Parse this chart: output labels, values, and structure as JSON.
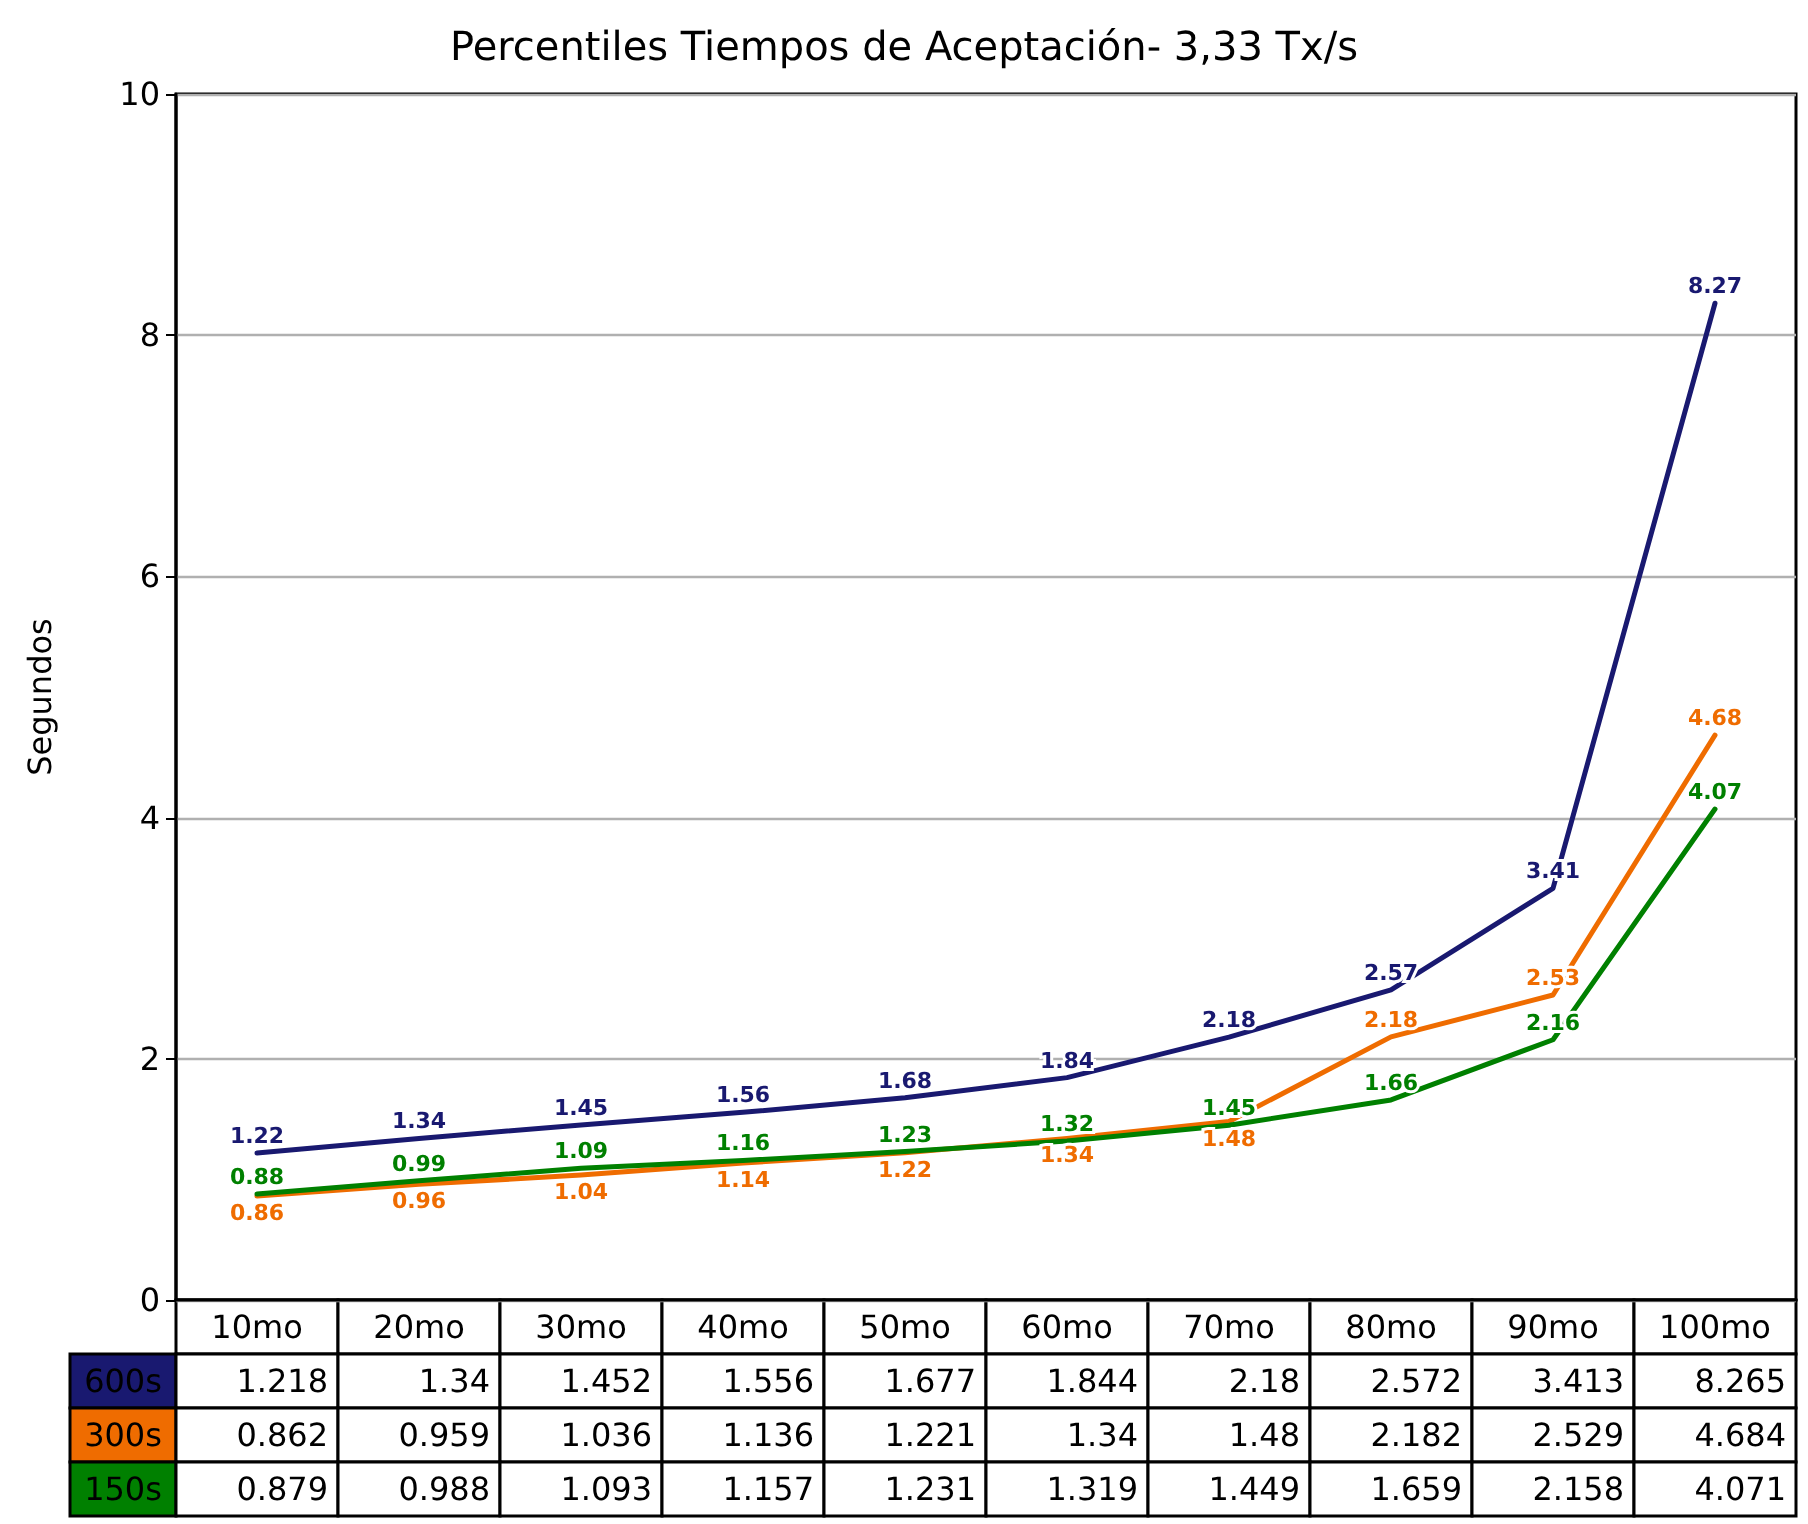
{
  "chart_data": {
    "type": "line",
    "title": "Percentiles Tiempos de Aceptación- 3,33 Tx/s",
    "ylabel": "Segundos",
    "categories": [
      "10mo",
      "20mo",
      "30mo",
      "40mo",
      "50mo",
      "60mo",
      "70mo",
      "80mo",
      "90mo",
      "100mo"
    ],
    "series": [
      {
        "name": "600s",
        "color": "#191970",
        "values": [
          1.218,
          1.34,
          1.452,
          1.556,
          1.677,
          1.844,
          2.18,
          2.572,
          3.413,
          8.265
        ]
      },
      {
        "name": "300s",
        "color": "#ef6c00",
        "values": [
          0.862,
          0.959,
          1.036,
          1.136,
          1.221,
          1.34,
          1.48,
          2.182,
          2.529,
          4.684
        ]
      },
      {
        "name": "150s",
        "color": "#008000",
        "values": [
          0.879,
          0.988,
          1.093,
          1.157,
          1.231,
          1.319,
          1.449,
          1.659,
          2.158,
          4.071
        ]
      }
    ],
    "annotations": [
      {
        "text": "1.22",
        "x": "10mo",
        "y": 1.218
      },
      {
        "text": "1.34",
        "x": "20mo",
        "y": 1.34
      },
      {
        "text": "1.45",
        "x": "30mo",
        "y": 1.452
      },
      {
        "text": "1.56",
        "x": "40mo",
        "y": 1.556
      },
      {
        "text": "1.68",
        "x": "50mo",
        "y": 1.677
      },
      {
        "text": "1.84",
        "x": "60mo",
        "y": 1.844
      },
      {
        "text": "2.18",
        "x": "70mo",
        "y": 2.18
      },
      {
        "text": "2.57",
        "x": "80mo",
        "y": 2.572
      },
      {
        "text": "3.41",
        "x": "90mo",
        "y": 3.413
      },
      {
        "text": "8.27",
        "x": "100mo",
        "y": 8.265
      },
      {
        "text": "0.86",
        "x": "10mo",
        "y": 0.862
      },
      {
        "text": "0.96",
        "x": "20mo",
        "y": 0.959
      },
      {
        "text": "1.04",
        "x": "30mo",
        "y": 1.036
      },
      {
        "text": "1.14",
        "x": "40mo",
        "y": 1.136
      },
      {
        "text": "1.22",
        "x": "50mo",
        "y": 1.221
      },
      {
        "text": "1.34",
        "x": "60mo",
        "y": 1.34
      },
      {
        "text": "1.48",
        "x": "70mo",
        "y": 1.48
      },
      {
        "text": "2.18",
        "x": "80mo",
        "y": 2.182
      },
      {
        "text": "2.53",
        "x": "90mo",
        "y": 2.529
      },
      {
        "text": "4.68",
        "x": "100mo",
        "y": 4.684
      },
      {
        "text": "0.88",
        "x": "10mo",
        "y": 0.879
      },
      {
        "text": "0.99",
        "x": "20mo",
        "y": 0.988
      },
      {
        "text": "1.09",
        "x": "30mo",
        "y": 1.093
      },
      {
        "text": "1.16",
        "x": "40mo",
        "y": 1.157
      },
      {
        "text": "1.23",
        "x": "50mo",
        "y": 1.231
      },
      {
        "text": "1.32",
        "x": "60mo",
        "y": 1.319
      },
      {
        "text": "1.45",
        "x": "70mo",
        "y": 1.449
      },
      {
        "text": "1.66",
        "x": "80mo",
        "y": 1.659
      },
      {
        "text": "2.16",
        "x": "90mo",
        "y": 2.158
      },
      {
        "text": "4.07",
        "x": "100mo",
        "y": 4.071
      }
    ],
    "ylim": [
      0,
      10
    ],
    "yticks": [
      0,
      2,
      4,
      6,
      8,
      10
    ],
    "grid": "y",
    "legend": "bottom",
    "data_labels": true,
    "marker": "none",
    "line_style": "solid"
  }
}
